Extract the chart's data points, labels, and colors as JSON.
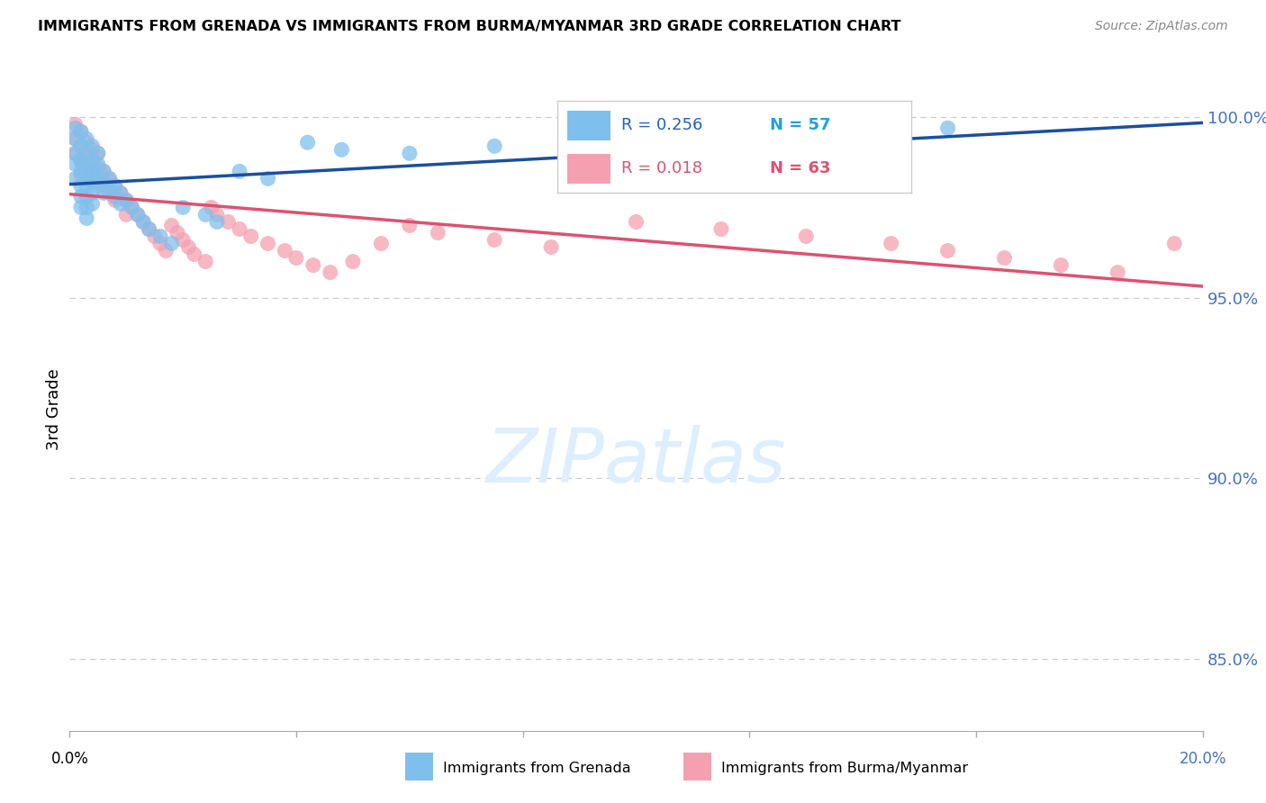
{
  "title": "IMMIGRANTS FROM GRENADA VS IMMIGRANTS FROM BURMA/MYANMAR 3RD GRADE CORRELATION CHART",
  "source": "Source: ZipAtlas.com",
  "ylabel": "3rd Grade",
  "xlim": [
    0.0,
    0.2
  ],
  "ylim": [
    0.83,
    1.008
  ],
  "grenada_R": 0.256,
  "grenada_N": 57,
  "burma_R": 0.018,
  "burma_N": 63,
  "blue_color": "#7fbfed",
  "pink_color": "#f5a0b0",
  "blue_line_color": "#1a4fa0",
  "pink_line_color": "#e05070",
  "background_color": "#ffffff",
  "grid_color": "#cccccc",
  "right_axis_color": "#4472c4",
  "right_yticks": [
    0.85,
    0.9,
    0.95,
    1.0
  ],
  "right_ytick_labels": [
    "85.0%",
    "90.0%",
    "95.0%",
    "100.0%"
  ],
  "watermark_text": "ZIPatlas",
  "watermark_color": "#ddeeff",
  "legend_R1_color": "#2060c0",
  "legend_N1_color": "#20a0e0",
  "legend_R2_color": "#e05070",
  "legend_N2_color": "#e05070",
  "grenada_x": [
    0.001,
    0.001,
    0.001,
    0.001,
    0.001,
    0.002,
    0.002,
    0.002,
    0.002,
    0.002,
    0.002,
    0.002,
    0.003,
    0.003,
    0.003,
    0.003,
    0.003,
    0.003,
    0.003,
    0.003,
    0.004,
    0.004,
    0.004,
    0.004,
    0.004,
    0.004,
    0.005,
    0.005,
    0.005,
    0.005,
    0.006,
    0.006,
    0.006,
    0.007,
    0.007,
    0.008,
    0.008,
    0.009,
    0.009,
    0.01,
    0.011,
    0.012,
    0.013,
    0.014,
    0.016,
    0.018,
    0.02,
    0.024,
    0.026,
    0.03,
    0.035,
    0.042,
    0.048,
    0.06,
    0.075,
    0.095,
    0.155
  ],
  "grenada_y": [
    0.997,
    0.994,
    0.99,
    0.987,
    0.983,
    0.996,
    0.992,
    0.988,
    0.985,
    0.981,
    0.978,
    0.975,
    0.994,
    0.99,
    0.987,
    0.984,
    0.981,
    0.978,
    0.975,
    0.972,
    0.992,
    0.988,
    0.985,
    0.982,
    0.979,
    0.976,
    0.99,
    0.987,
    0.984,
    0.981,
    0.985,
    0.982,
    0.979,
    0.983,
    0.98,
    0.981,
    0.978,
    0.979,
    0.976,
    0.977,
    0.975,
    0.973,
    0.971,
    0.969,
    0.967,
    0.965,
    0.975,
    0.973,
    0.971,
    0.985,
    0.983,
    0.993,
    0.991,
    0.99,
    0.992,
    0.993,
    0.997
  ],
  "burma_x": [
    0.001,
    0.001,
    0.001,
    0.002,
    0.002,
    0.002,
    0.002,
    0.003,
    0.003,
    0.003,
    0.004,
    0.004,
    0.004,
    0.005,
    0.005,
    0.005,
    0.006,
    0.006,
    0.007,
    0.007,
    0.008,
    0.008,
    0.009,
    0.01,
    0.01,
    0.011,
    0.012,
    0.013,
    0.014,
    0.015,
    0.016,
    0.017,
    0.018,
    0.019,
    0.02,
    0.021,
    0.022,
    0.024,
    0.025,
    0.026,
    0.028,
    0.03,
    0.032,
    0.035,
    0.038,
    0.04,
    0.043,
    0.046,
    0.05,
    0.055,
    0.06,
    0.065,
    0.075,
    0.085,
    0.1,
    0.115,
    0.13,
    0.145,
    0.155,
    0.165,
    0.175,
    0.185,
    0.195
  ],
  "burma_y": [
    0.998,
    0.994,
    0.99,
    0.996,
    0.992,
    0.988,
    0.984,
    0.993,
    0.989,
    0.985,
    0.991,
    0.987,
    0.983,
    0.99,
    0.986,
    0.982,
    0.985,
    0.981,
    0.983,
    0.979,
    0.981,
    0.977,
    0.979,
    0.977,
    0.973,
    0.975,
    0.973,
    0.971,
    0.969,
    0.967,
    0.965,
    0.963,
    0.97,
    0.968,
    0.966,
    0.964,
    0.962,
    0.96,
    0.975,
    0.973,
    0.971,
    0.969,
    0.967,
    0.965,
    0.963,
    0.961,
    0.959,
    0.957,
    0.96,
    0.965,
    0.97,
    0.968,
    0.966,
    0.964,
    0.971,
    0.969,
    0.967,
    0.965,
    0.963,
    0.961,
    0.959,
    0.957,
    0.965
  ],
  "bottom_legend_blue_label": "Immigrants from Grenada",
  "bottom_legend_pink_label": "Immigrants from Burma/Myanmar"
}
